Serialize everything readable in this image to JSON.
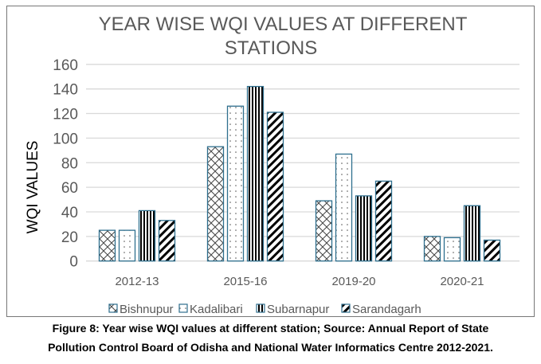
{
  "chart_data": {
    "type": "bar",
    "title": "YEAR WISE WQI VALUES AT DIFFERENT STATIONS",
    "title_lines": [
      "YEAR WISE WQI VALUES AT DIFFERENT",
      "STATIONS"
    ],
    "xlabel": "",
    "ylabel": "WQI VALUES",
    "ylim": [
      0,
      160
    ],
    "yticks": [
      0,
      20,
      40,
      60,
      80,
      100,
      120,
      140,
      160
    ],
    "grid": true,
    "legend_position": "bottom",
    "categories": [
      "2012-13",
      "2015-16",
      "2019-20",
      "2020-21"
    ],
    "series": [
      {
        "name": "Bishnupur",
        "pattern": "crosshatch",
        "values": [
          25,
          93,
          49,
          20
        ]
      },
      {
        "name": "Kadalibari",
        "pattern": "dots",
        "values": [
          25,
          126,
          87,
          19
        ]
      },
      {
        "name": "Subarnapur",
        "pattern": "vertical-stripes",
        "values": [
          41,
          142,
          53,
          45
        ]
      },
      {
        "name": "Sarandagarh",
        "pattern": "diagonal-stripes",
        "values": [
          33,
          121,
          65,
          17
        ]
      }
    ],
    "colors": {
      "bar_outline": "#2e6f8e",
      "grid": "#d9d9d9",
      "text": "#595959"
    }
  },
  "caption": {
    "line1": "Figure 8: Year wise WQI values at different station; Source: Annual Report of State",
    "line2": "Pollution Control Board of Odisha and National Water Informatics Centre 2012-2021."
  }
}
